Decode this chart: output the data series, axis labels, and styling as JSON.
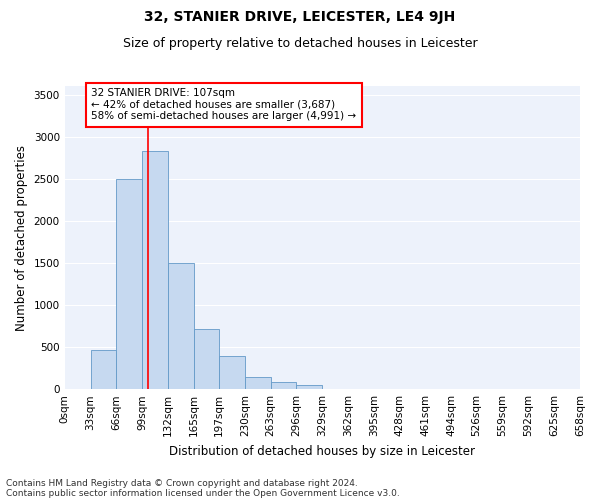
{
  "title": "32, STANIER DRIVE, LEICESTER, LE4 9JH",
  "subtitle": "Size of property relative to detached houses in Leicester",
  "xlabel": "Distribution of detached houses by size in Leicester",
  "ylabel": "Number of detached properties",
  "footer_line1": "Contains HM Land Registry data © Crown copyright and database right 2024.",
  "footer_line2": "Contains public sector information licensed under the Open Government Licence v3.0.",
  "bar_edges": [
    0,
    33,
    66,
    99,
    132,
    165,
    197,
    230,
    263,
    296,
    329,
    362,
    395,
    428,
    461,
    494,
    526,
    559,
    592,
    625,
    658
  ],
  "bar_heights": [
    0,
    470,
    2500,
    2830,
    1500,
    720,
    390,
    150,
    90,
    50,
    0,
    0,
    0,
    0,
    0,
    0,
    0,
    0,
    0,
    0
  ],
  "bar_color": "#c6d9f0",
  "bar_edgecolor": "#6399c8",
  "vline_x": 107,
  "vline_color": "red",
  "annotation_text": "32 STANIER DRIVE: 107sqm\n← 42% of detached houses are smaller (3,687)\n58% of semi-detached houses are larger (4,991) →",
  "annotation_box_color": "white",
  "annotation_box_edgecolor": "red",
  "ylim": [
    0,
    3600
  ],
  "yticks": [
    0,
    500,
    1000,
    1500,
    2000,
    2500,
    3000,
    3500
  ],
  "background_color": "#edf2fb",
  "title_fontsize": 10,
  "subtitle_fontsize": 9,
  "axis_label_fontsize": 8.5,
  "tick_fontsize": 7.5,
  "annotation_fontsize": 7.5,
  "footer_fontsize": 6.5
}
